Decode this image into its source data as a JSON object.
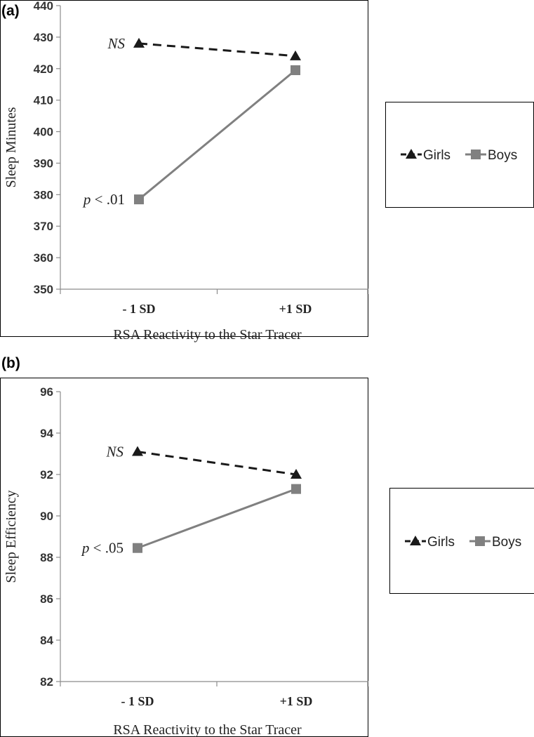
{
  "colors": {
    "girls": "#1a1a1a",
    "boys": "#808080",
    "frame": "#000000",
    "axis": "#8c8c8c"
  },
  "chart_data": [
    {
      "type": "line",
      "panel_label": "(a)",
      "title": "",
      "xlabel": "RSA Reactivity to the Star Tracer",
      "ylabel": "Sleep Minutes",
      "categories": [
        "- 1 SD",
        "+1 SD"
      ],
      "ylim": [
        350,
        440
      ],
      "yticks": [
        "350",
        "360",
        "370",
        "380",
        "390",
        "400",
        "410",
        "420",
        "430",
        "440"
      ],
      "grid": false,
      "legend_position": "right",
      "series": [
        {
          "name": "Girls",
          "values": [
            428,
            424
          ],
          "style": "dashed",
          "marker": "triangle"
        },
        {
          "name": "Boys",
          "values": [
            378.5,
            419.5
          ],
          "style": "solid",
          "marker": "square"
        }
      ],
      "annotations": [
        {
          "series": "Girls",
          "point": 0,
          "italic_part": "NS",
          "rest": ""
        },
        {
          "series": "Boys",
          "point": 0,
          "italic_part": "p",
          "rest": " < .01"
        }
      ]
    },
    {
      "type": "line",
      "panel_label": "(b)",
      "title": "",
      "xlabel": "RSA Reactivity to the Star Tracer",
      "ylabel": "Sleep Efficiency",
      "categories": [
        "- 1 SD",
        "+1 SD"
      ],
      "ylim": [
        82,
        96
      ],
      "yticks": [
        "82",
        "84",
        "86",
        "88",
        "90",
        "92",
        "94",
        "96"
      ],
      "grid": false,
      "legend_position": "right",
      "series": [
        {
          "name": "Girls",
          "values": [
            93.1,
            92.0
          ],
          "style": "dashed",
          "marker": "triangle"
        },
        {
          "name": "Boys",
          "values": [
            88.45,
            91.3
          ],
          "style": "solid",
          "marker": "square"
        }
      ],
      "annotations": [
        {
          "series": "Girls",
          "point": 0,
          "italic_part": "NS",
          "rest": ""
        },
        {
          "series": "Boys",
          "point": 0,
          "italic_part": "p",
          "rest": " < .05"
        }
      ]
    }
  ]
}
